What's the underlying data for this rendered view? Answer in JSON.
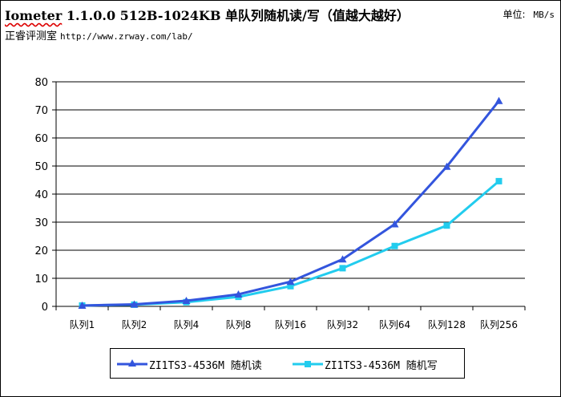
{
  "header": {
    "title_word": "Iometer",
    "title_rest": " 1.1.0.0 512B-1024KB 单队列随机读/写（值越大越好）",
    "unit_label": "单位:",
    "unit_value": "MB/s",
    "lab_name": "正睿评测室",
    "lab_url": "http://www.zrway.com/lab/"
  },
  "chart_data": {
    "type": "line",
    "categories": [
      "队列1",
      "队列2",
      "队列4",
      "队列8",
      "队列16",
      "队列32",
      "队列64",
      "队列128",
      "队列256"
    ],
    "ylim": [
      0,
      80
    ],
    "yticks": [
      0,
      10,
      20,
      30,
      40,
      50,
      60,
      70,
      80
    ],
    "grid": true,
    "legend_position": "bottom",
    "series": [
      {
        "name": "ZI1TS3-4536M 随机读",
        "color": "#3355dd",
        "marker": "triangle",
        "values": [
          0.3,
          0.7,
          2.0,
          4.3,
          8.8,
          16.8,
          29.3,
          49.8,
          73.2
        ]
      },
      {
        "name": "ZI1TS3-4536M 随机写",
        "color": "#22ccee",
        "marker": "square",
        "values": [
          0.3,
          0.6,
          1.5,
          3.4,
          7.2,
          13.6,
          21.5,
          28.8,
          44.6
        ]
      }
    ]
  }
}
